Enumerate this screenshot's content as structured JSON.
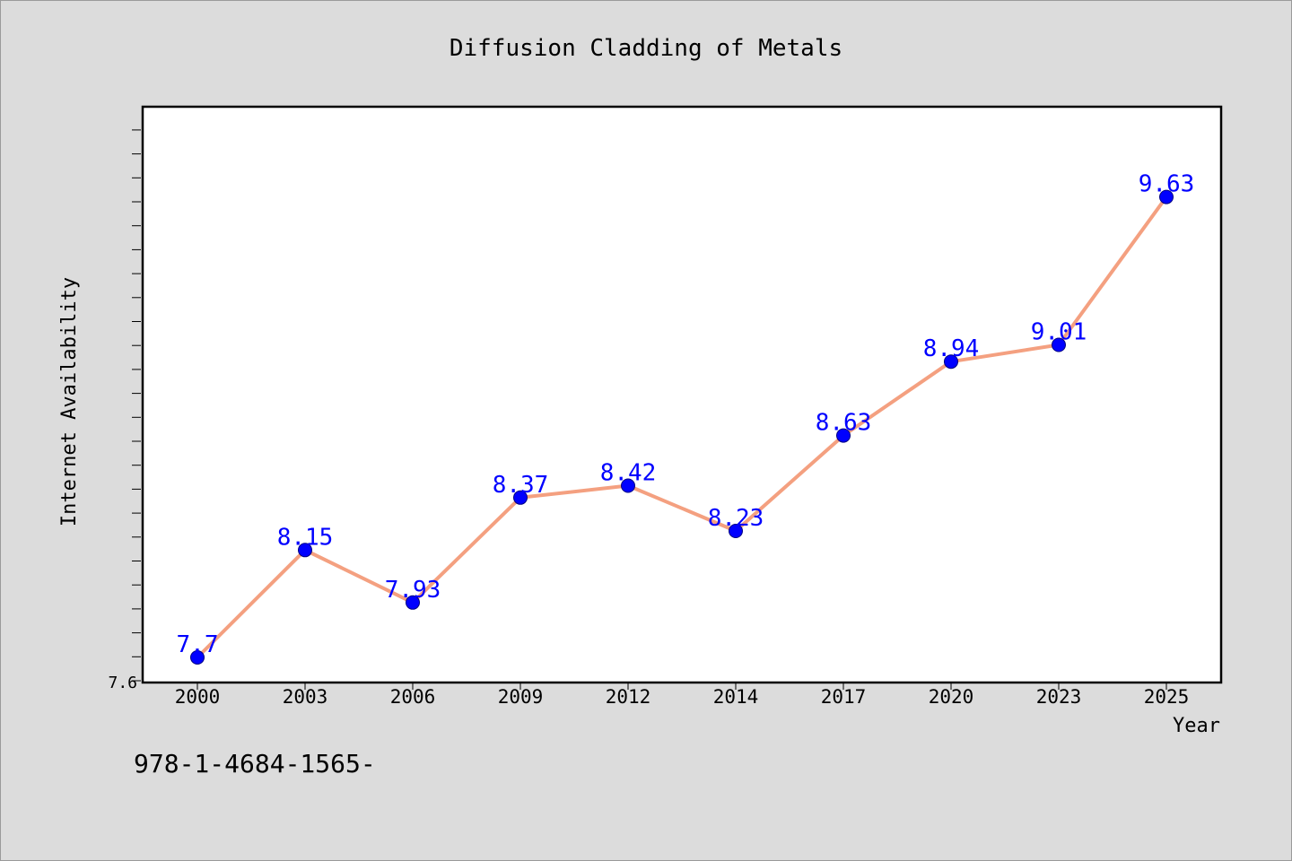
{
  "chart_data": {
    "type": "line",
    "title": "Diffusion Cladding of Metals",
    "xlabel": "Year",
    "ylabel": "Internet Availability",
    "categories": [
      "2000",
      "2003",
      "2006",
      "2009",
      "2012",
      "2014",
      "2017",
      "2020",
      "2023",
      "2025"
    ],
    "series": [
      {
        "values": [
          7.7,
          8.15,
          7.93,
          8.37,
          8.42,
          8.23,
          8.63,
          8.94,
          9.01,
          9.63
        ],
        "labels": [
          "7.7",
          "8.15",
          "7.93",
          "8.37",
          "8.42",
          "8.23",
          "8.63",
          "8.94",
          "9.01",
          "9.63"
        ]
      }
    ],
    "ylim": [
      7.6,
      10.0
    ],
    "yticks": [
      "7.6"
    ],
    "grid": false,
    "colors": {
      "line": "#f4a080",
      "marker": "#0000ff",
      "marker_edge": "#000080",
      "label": "#0000ff",
      "background": "#dcdcdc",
      "plot_background": "#ffffff"
    }
  },
  "footer_text": "978-1-4684-1565-"
}
